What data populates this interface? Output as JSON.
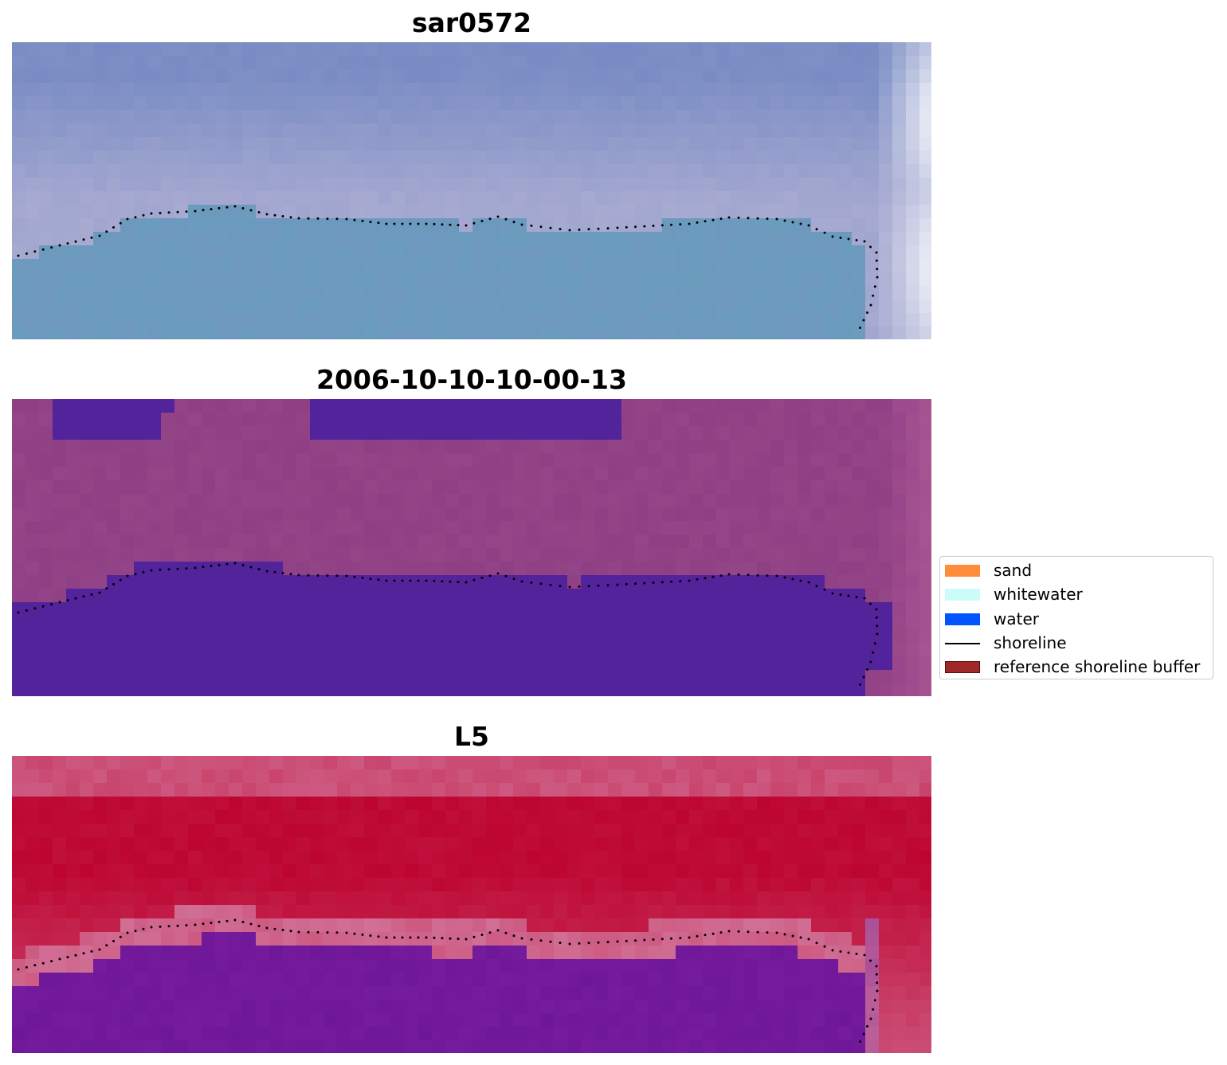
{
  "panels": [
    {
      "title": "sar0572",
      "scheme": "sar"
    },
    {
      "title": "2006-10-10-10-00-13",
      "scheme": "classified"
    },
    {
      "title": "L5",
      "scheme": "index"
    }
  ],
  "legend": {
    "items": [
      {
        "label": "sand",
        "color": "#ff8c3a",
        "kind": "patch"
      },
      {
        "label": "whitewater",
        "color": "#ccfcf7",
        "kind": "patch"
      },
      {
        "label": "water",
        "color": "#0055ff",
        "kind": "patch"
      },
      {
        "label": "shoreline",
        "color": "#000000",
        "kind": "line"
      },
      {
        "label": "reference shoreline buffer",
        "color": "#a02828",
        "kind": "patch"
      }
    ]
  },
  "colors": {
    "sar_top": "#7b8dc4",
    "sar_band": "#a4a8d0",
    "sar_bottom": "#6a9cbc",
    "sar_edge": "#eef0f8",
    "classified_land": "#8a3a80",
    "classified_water": "#52239a",
    "index_high": "#be0a35",
    "index_pale": "#d2749a",
    "index_low": "#6a1496",
    "shoreline_dots": "#000000"
  }
}
